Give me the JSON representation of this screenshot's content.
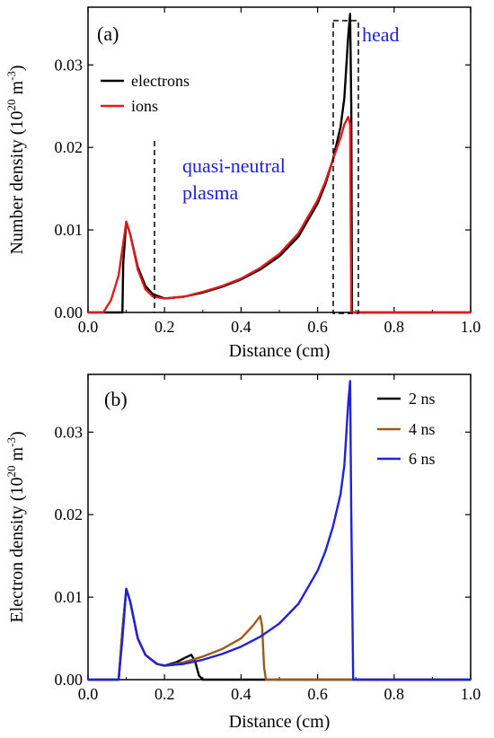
{
  "chart_data": [
    {
      "type": "line",
      "panel_label": "(a)",
      "xlabel": "Distance (cm)",
      "ylabel_main": "Number density (10",
      "ylabel_sup": "20",
      "ylabel_mid": " m",
      "ylabel_sup2": "-3",
      "ylabel_end": ")",
      "xlim": [
        0.0,
        1.0
      ],
      "ylim": [
        0.0,
        0.037
      ],
      "xticks": [
        "0.0",
        "0.2",
        "0.4",
        "0.6",
        "0.8",
        "1.0"
      ],
      "yticks": [
        "0.00",
        "0.01",
        "0.02",
        "0.03"
      ],
      "legend_position": "top-left",
      "annotations": {
        "quasi_line1": "quasi-neutral",
        "quasi_line2": "plasma",
        "head": "head"
      },
      "annotation_color": "#1f22d6",
      "series": [
        {
          "name": "electrons",
          "color": "#000000",
          "points": [
            [
              0.0,
              0
            ],
            [
              0.09,
              0
            ],
            [
              0.092,
              0.006
            ],
            [
              0.1,
              0.011
            ],
            [
              0.11,
              0.0095
            ],
            [
              0.13,
              0.0055
            ],
            [
              0.15,
              0.0032
            ],
            [
              0.17,
              0.0022
            ],
            [
              0.2,
              0.0017
            ],
            [
              0.25,
              0.0019
            ],
            [
              0.3,
              0.0024
            ],
            [
              0.35,
              0.0031
            ],
            [
              0.4,
              0.004
            ],
            [
              0.45,
              0.0052
            ],
            [
              0.5,
              0.0068
            ],
            [
              0.55,
              0.0092
            ],
            [
              0.6,
              0.0132
            ],
            [
              0.62,
              0.0155
            ],
            [
              0.64,
              0.0185
            ],
            [
              0.66,
              0.0225
            ],
            [
              0.67,
              0.026
            ],
            [
              0.68,
              0.0335
            ],
            [
              0.685,
              0.0362
            ],
            [
              0.688,
              0.025
            ],
            [
              0.69,
              0.0
            ],
            [
              1.0,
              0.0
            ]
          ]
        },
        {
          "name": "ions",
          "color": "#e31a1c",
          "points": [
            [
              0.0,
              0
            ],
            [
              0.04,
              0
            ],
            [
              0.06,
              0.0015
            ],
            [
              0.08,
              0.0045
            ],
            [
              0.1,
              0.011
            ],
            [
              0.11,
              0.0095
            ],
            [
              0.13,
              0.0052
            ],
            [
              0.15,
              0.0028
            ],
            [
              0.17,
              0.0019
            ],
            [
              0.2,
              0.0017
            ],
            [
              0.25,
              0.0019
            ],
            [
              0.3,
              0.0025
            ],
            [
              0.35,
              0.0032
            ],
            [
              0.4,
              0.0041
            ],
            [
              0.45,
              0.0054
            ],
            [
              0.5,
              0.0071
            ],
            [
              0.55,
              0.0096
            ],
            [
              0.6,
              0.0136
            ],
            [
              0.62,
              0.0158
            ],
            [
              0.64,
              0.0185
            ],
            [
              0.66,
              0.0212
            ],
            [
              0.67,
              0.0228
            ],
            [
              0.68,
              0.0237
            ],
            [
              0.685,
              0.0228
            ],
            [
              0.688,
              0.0
            ],
            [
              1.0,
              0.0
            ]
          ]
        }
      ]
    },
    {
      "type": "line",
      "panel_label": "(b)",
      "xlabel": "Distance (cm)",
      "ylabel_main": "Electron density (10",
      "ylabel_sup": "20",
      "ylabel_mid": " m",
      "ylabel_sup2": "-3",
      "ylabel_end": ")",
      "xlim": [
        0.0,
        1.0
      ],
      "ylim": [
        0.0,
        0.037
      ],
      "xticks": [
        "0.0",
        "0.2",
        "0.4",
        "0.6",
        "0.8",
        "1.0"
      ],
      "yticks": [
        "0.00",
        "0.01",
        "0.02",
        "0.03"
      ],
      "legend_position": "top-right",
      "series": [
        {
          "name": "2 ns",
          "color": "#000000",
          "points": [
            [
              0.0,
              0
            ],
            [
              0.08,
              0
            ],
            [
              0.09,
              0.006
            ],
            [
              0.1,
              0.011
            ],
            [
              0.11,
              0.0095
            ],
            [
              0.13,
              0.005
            ],
            [
              0.15,
              0.003
            ],
            [
              0.18,
              0.0019
            ],
            [
              0.2,
              0.0017
            ],
            [
              0.23,
              0.0021
            ],
            [
              0.26,
              0.0028
            ],
            [
              0.27,
              0.003
            ],
            [
              0.28,
              0.0022
            ],
            [
              0.29,
              0.0005
            ],
            [
              0.3,
              0.0
            ],
            [
              1.0,
              0.0
            ]
          ]
        },
        {
          "name": "4 ns",
          "color": "#9c5a1a",
          "points": [
            [
              0.0,
              0
            ],
            [
              0.08,
              0
            ],
            [
              0.09,
              0.006
            ],
            [
              0.1,
              0.011
            ],
            [
              0.11,
              0.0095
            ],
            [
              0.13,
              0.005
            ],
            [
              0.15,
              0.003
            ],
            [
              0.18,
              0.0019
            ],
            [
              0.2,
              0.0017
            ],
            [
              0.25,
              0.0021
            ],
            [
              0.3,
              0.0028
            ],
            [
              0.35,
              0.0037
            ],
            [
              0.4,
              0.005
            ],
            [
              0.43,
              0.0065
            ],
            [
              0.45,
              0.0077
            ],
            [
              0.455,
              0.0065
            ],
            [
              0.46,
              0.0015
            ],
            [
              0.465,
              0.0
            ],
            [
              1.0,
              0.0
            ]
          ]
        },
        {
          "name": "6 ns",
          "color": "#1f22d6",
          "points": [
            [
              0.0,
              0
            ],
            [
              0.08,
              0
            ],
            [
              0.09,
              0.005
            ],
            [
              0.1,
              0.011
            ],
            [
              0.11,
              0.0095
            ],
            [
              0.13,
              0.005
            ],
            [
              0.15,
              0.003
            ],
            [
              0.18,
              0.0019
            ],
            [
              0.2,
              0.0017
            ],
            [
              0.25,
              0.0019
            ],
            [
              0.3,
              0.0024
            ],
            [
              0.35,
              0.0031
            ],
            [
              0.4,
              0.004
            ],
            [
              0.45,
              0.0052
            ],
            [
              0.5,
              0.0068
            ],
            [
              0.55,
              0.0092
            ],
            [
              0.6,
              0.0132
            ],
            [
              0.62,
              0.0155
            ],
            [
              0.64,
              0.0185
            ],
            [
              0.66,
              0.0225
            ],
            [
              0.67,
              0.026
            ],
            [
              0.68,
              0.0335
            ],
            [
              0.685,
              0.0362
            ],
            [
              0.688,
              0.02
            ],
            [
              0.693,
              0.0
            ],
            [
              1.0,
              0.0
            ]
          ]
        }
      ]
    }
  ]
}
